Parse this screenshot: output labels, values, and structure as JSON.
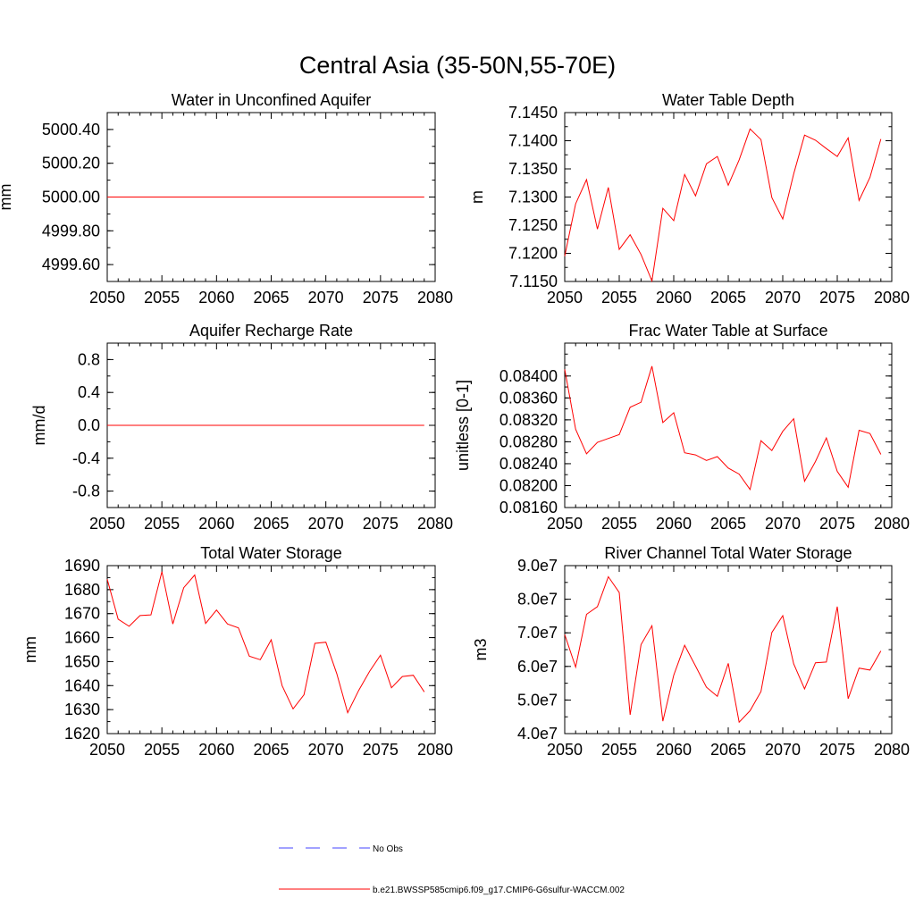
{
  "figure": {
    "title": "Central Asia (35-50N,55-70E)",
    "legend": [
      {
        "label": "No Obs",
        "color": "#4444ff",
        "style": "dashed"
      },
      {
        "label": "b.e21.BWSSP585cmip6.f09_g17.CMIP6-G6sulfur-WACCM.002",
        "color": "#ff0000",
        "style": "solid"
      }
    ]
  },
  "chart_data": [
    {
      "type": "line",
      "title": "Water in Unconfined Aquifer",
      "ylabel": "mm",
      "xlim": [
        2050,
        2080
      ],
      "ylim": [
        4999.5,
        5000.5
      ],
      "xticks": [
        "2050",
        "2055",
        "2060",
        "2065",
        "2070",
        "2075",
        "2080"
      ],
      "yticks": [
        "4999.60",
        "4999.80",
        "5000.00",
        "5000.20",
        "5000.40"
      ],
      "ytick_values": [
        4999.6,
        4999.8,
        5000.0,
        5000.2,
        5000.4
      ],
      "series": [
        {
          "color": "#ff0000",
          "x": [
            2050,
            2051,
            2052,
            2053,
            2054,
            2055,
            2056,
            2057,
            2058,
            2059,
            2060,
            2061,
            2062,
            2063,
            2064,
            2065,
            2066,
            2067,
            2068,
            2069,
            2070,
            2071,
            2072,
            2073,
            2074,
            2075,
            2076,
            2077,
            2078,
            2079
          ],
          "values": [
            5000,
            5000,
            5000,
            5000,
            5000,
            5000,
            5000,
            5000,
            5000,
            5000,
            5000,
            5000,
            5000,
            5000,
            5000,
            5000,
            5000,
            5000,
            5000,
            5000,
            5000,
            5000,
            5000,
            5000,
            5000,
            5000,
            5000,
            5000,
            5000,
            5000
          ]
        }
      ]
    },
    {
      "type": "line",
      "title": "Water Table Depth",
      "ylabel": "m",
      "xlim": [
        2050,
        2080
      ],
      "ylim": [
        7.115,
        7.145
      ],
      "xticks": [
        "2050",
        "2055",
        "2060",
        "2065",
        "2070",
        "2075",
        "2080"
      ],
      "yticks": [
        "7.1150",
        "7.1200",
        "7.1250",
        "7.1300",
        "7.1350",
        "7.1400",
        "7.1450"
      ],
      "ytick_values": [
        7.115,
        7.12,
        7.125,
        7.13,
        7.135,
        7.14,
        7.145
      ],
      "series": [
        {
          "color": "#ff0000",
          "x": [
            2050,
            2051,
            2052,
            2053,
            2054,
            2055,
            2056,
            2057,
            2058,
            2059,
            2060,
            2061,
            2062,
            2063,
            2064,
            2065,
            2066,
            2067,
            2068,
            2069,
            2070,
            2071,
            2072,
            2073,
            2074,
            2075,
            2076,
            2077,
            2078,
            2079
          ],
          "values": [
            7.1195,
            7.1288,
            7.1331,
            7.1243,
            7.1317,
            7.1207,
            7.1233,
            7.1198,
            7.1151,
            7.128,
            7.1258,
            7.134,
            7.1302,
            7.1359,
            7.1372,
            7.1321,
            7.1366,
            7.1421,
            7.1402,
            7.1299,
            7.1261,
            7.1341,
            7.141,
            7.1401,
            7.1386,
            7.1372,
            7.1405,
            7.1294,
            7.1335,
            7.1403
          ]
        }
      ]
    },
    {
      "type": "line",
      "title": "Aquifer Recharge Rate",
      "ylabel": "mm/d",
      "xlim": [
        2050,
        2080
      ],
      "ylim": [
        -1.0,
        1.0
      ],
      "xticks": [
        "2050",
        "2055",
        "2060",
        "2065",
        "2070",
        "2075",
        "2080"
      ],
      "yticks": [
        "-0.8",
        "-0.4",
        "0.0",
        "0.4",
        "0.8"
      ],
      "ytick_values": [
        -0.8,
        -0.4,
        0.0,
        0.4,
        0.8
      ],
      "series": [
        {
          "color": "#ff0000",
          "x": [
            2050,
            2051,
            2052,
            2053,
            2054,
            2055,
            2056,
            2057,
            2058,
            2059,
            2060,
            2061,
            2062,
            2063,
            2064,
            2065,
            2066,
            2067,
            2068,
            2069,
            2070,
            2071,
            2072,
            2073,
            2074,
            2075,
            2076,
            2077,
            2078,
            2079
          ],
          "values": [
            0,
            0,
            0,
            0,
            0,
            0,
            0,
            0,
            0,
            0,
            0,
            0,
            0,
            0,
            0,
            0,
            0,
            0,
            0,
            0,
            0,
            0,
            0,
            0,
            0,
            0,
            0,
            0,
            0,
            0
          ]
        }
      ]
    },
    {
      "type": "line",
      "title": "Frac Water Table at Surface",
      "ylabel": "unitless [0-1]",
      "xlim": [
        2050,
        2080
      ],
      "ylim": [
        0.0816,
        0.0846
      ],
      "xticks": [
        "2050",
        "2055",
        "2060",
        "2065",
        "2070",
        "2075",
        "2080"
      ],
      "yticks": [
        "0.08160",
        "0.08200",
        "0.08240",
        "0.08280",
        "0.08320",
        "0.08360",
        "0.08400"
      ],
      "ytick_values": [
        0.0816,
        0.082,
        0.0824,
        0.0828,
        0.0832,
        0.0836,
        0.084
      ],
      "series": [
        {
          "color": "#ff0000",
          "x": [
            2050,
            2051,
            2052,
            2053,
            2054,
            2055,
            2056,
            2057,
            2058,
            2059,
            2060,
            2061,
            2062,
            2063,
            2064,
            2065,
            2066,
            2067,
            2068,
            2069,
            2070,
            2071,
            2072,
            2073,
            2074,
            2075,
            2076,
            2077,
            2078,
            2079
          ],
          "values": [
            0.08412,
            0.08303,
            0.08258,
            0.08279,
            0.08286,
            0.08293,
            0.08343,
            0.08352,
            0.08418,
            0.08315,
            0.08333,
            0.0826,
            0.08256,
            0.08246,
            0.08253,
            0.08232,
            0.08221,
            0.08193,
            0.08282,
            0.08264,
            0.08299,
            0.08322,
            0.08208,
            0.08244,
            0.08287,
            0.08226,
            0.08197,
            0.08301,
            0.08295,
            0.08257
          ]
        }
      ]
    },
    {
      "type": "line",
      "title": "Total Water Storage",
      "ylabel": "mm",
      "xlim": [
        2050,
        2080
      ],
      "ylim": [
        1620,
        1690
      ],
      "xticks": [
        "2050",
        "2055",
        "2060",
        "2065",
        "2070",
        "2075",
        "2080"
      ],
      "yticks": [
        "1620",
        "1630",
        "1640",
        "1650",
        "1660",
        "1670",
        "1680",
        "1690"
      ],
      "ytick_values": [
        1620,
        1630,
        1640,
        1650,
        1660,
        1670,
        1680,
        1690
      ],
      "series": [
        {
          "color": "#ff0000",
          "x": [
            2050,
            2051,
            2052,
            2053,
            2054,
            2055,
            2056,
            2057,
            2058,
            2059,
            2060,
            2061,
            2062,
            2063,
            2064,
            2065,
            2066,
            2067,
            2068,
            2069,
            2070,
            2071,
            2072,
            2073,
            2074,
            2075,
            2076,
            2077,
            2078,
            2079
          ],
          "values": [
            1684.3,
            1667.7,
            1664.7,
            1669.2,
            1669.5,
            1687.5,
            1665.7,
            1680.8,
            1686.1,
            1665.9,
            1671.5,
            1665.7,
            1664.1,
            1652.3,
            1650.8,
            1659.1,
            1640.0,
            1630.3,
            1636.2,
            1657.6,
            1658.1,
            1645.0,
            1628.7,
            1638.0,
            1645.9,
            1652.7,
            1639.1,
            1643.8,
            1644.3,
            1637.4
          ]
        }
      ]
    },
    {
      "type": "line",
      "title": "River Channel Total Water Storage",
      "ylabel": "m3",
      "xlim": [
        2050,
        2080
      ],
      "ylim": [
        40000000,
        90000000
      ],
      "xticks": [
        "2050",
        "2055",
        "2060",
        "2065",
        "2070",
        "2075",
        "2080"
      ],
      "yticks": [
        "4.0e7",
        "5.0e7",
        "6.0e7",
        "7.0e7",
        "8.0e7",
        "9.0e7"
      ],
      "ytick_values": [
        40000000,
        50000000,
        60000000,
        70000000,
        80000000,
        90000000
      ],
      "series": [
        {
          "color": "#ff0000",
          "x": [
            2050,
            2051,
            2052,
            2053,
            2054,
            2055,
            2056,
            2057,
            2058,
            2059,
            2060,
            2061,
            2062,
            2063,
            2064,
            2065,
            2066,
            2067,
            2068,
            2069,
            2070,
            2071,
            2072,
            2073,
            2074,
            2075,
            2076,
            2077,
            2078,
            2079
          ],
          "values": [
            69500000,
            59800000,
            75500000,
            77800000,
            86700000,
            82000000,
            45600000,
            66500000,
            72100000,
            43700000,
            57400000,
            66300000,
            60100000,
            53800000,
            51100000,
            60900000,
            43400000,
            46800000,
            52500000,
            70100000,
            75100000,
            60800000,
            53300000,
            61100000,
            61300000,
            77800000,
            50400000,
            59500000,
            58900000,
            64600000
          ]
        }
      ]
    }
  ]
}
